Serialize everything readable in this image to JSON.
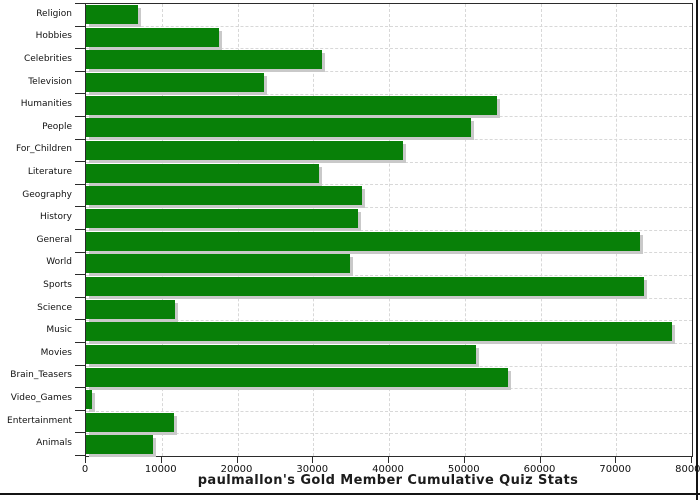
{
  "title": "paulmallon's Gold Member Cumulative Quiz Stats",
  "chart_data": {
    "type": "bar",
    "orientation": "horizontal",
    "title": "paulmallon's Gold Member Cumulative Quiz Stats",
    "categories": [
      "Religion",
      "Hobbies",
      "Celebrities",
      "Television",
      "Humanities",
      "People",
      "For_Children",
      "Literature",
      "Geography",
      "History",
      "General",
      "World",
      "Sports",
      "Science",
      "Music",
      "Movies",
      "Brain_Teasers",
      "Video_Games",
      "Entertainment",
      "Animals"
    ],
    "values": [
      6900,
      17500,
      31100,
      23500,
      54300,
      50800,
      41900,
      30700,
      36500,
      35900,
      73100,
      34900,
      73600,
      11800,
      77300,
      51500,
      55700,
      800,
      11600,
      8900
    ],
    "xlabel": "",
    "ylabel": "",
    "xlim": [
      0,
      80000
    ],
    "x_ticks": [
      0,
      10000,
      20000,
      30000,
      40000,
      50000,
      60000,
      70000,
      80000
    ],
    "x_tick_labels": [
      "0",
      "10000",
      "20000",
      "30000",
      "40000",
      "50000",
      "60000",
      "70000",
      "80000"
    ],
    "grid": "dashed vertical at each 10000 and dashed horizontal between rows",
    "legend_position": "none",
    "bar_color": "#088008",
    "bar_shadow_color": "#c9c9c9",
    "gridline_color": "#d8d8d8",
    "axis_color": "#2b2b2b"
  }
}
